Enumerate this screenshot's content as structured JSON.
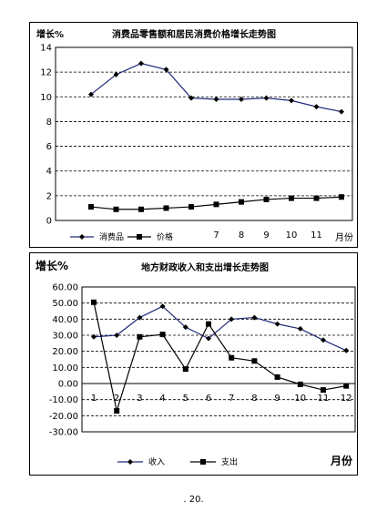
{
  "page_number": ". 20.",
  "chart_data": [
    {
      "type": "line",
      "title": "消费品零售额和居民消费价格增长走势图",
      "ylabel": "增长%",
      "xlabel": "月份",
      "ylim": [
        0,
        14
      ],
      "yticks": [
        "0",
        "2",
        "4",
        "6",
        "8",
        "10",
        "12",
        "14"
      ],
      "categories": [
        "",
        "",
        "",
        "",
        "",
        "7",
        "8",
        "9",
        "10",
        "11",
        ""
      ],
      "grid": "horizontal dashed",
      "legend": "bottom",
      "series": [
        {
          "name": "消费品",
          "marker": "diamond",
          "values": [
            10.2,
            11.8,
            12.7,
            12.2,
            9.9,
            9.8,
            9.8,
            9.9,
            9.7,
            9.2,
            8.8
          ]
        },
        {
          "name": "价格",
          "marker": "square",
          "values": [
            1.1,
            0.9,
            0.9,
            1.0,
            1.1,
            1.3,
            1.5,
            1.7,
            1.8,
            1.8,
            1.9
          ]
        }
      ]
    },
    {
      "type": "line",
      "title": "地方财政收入和支出增长走势图",
      "ylabel": "增长%",
      "xlabel": "月份",
      "ylim": [
        -30,
        60
      ],
      "yticks": [
        "60.00",
        "50.00",
        "40.00",
        "30.00",
        "20.00",
        "10.00",
        "0.00",
        "-10.00",
        "-20.00",
        "-30.00"
      ],
      "categories": [
        "1",
        "2",
        "3",
        "4",
        "5",
        "6",
        "7",
        "8",
        "9",
        "10",
        "11",
        "12"
      ],
      "grid": "horizontal dashed",
      "legend": "bottom",
      "series": [
        {
          "name": "收入",
          "marker": "diamond",
          "values": [
            29,
            30,
            41,
            48,
            35,
            28,
            40,
            41,
            37,
            34,
            27,
            20.5
          ]
        },
        {
          "name": "支出",
          "marker": "square",
          "values": [
            50.5,
            -17,
            29,
            30.5,
            9,
            37,
            16,
            14,
            4,
            -0.5,
            -4,
            -1.5
          ]
        }
      ]
    }
  ]
}
